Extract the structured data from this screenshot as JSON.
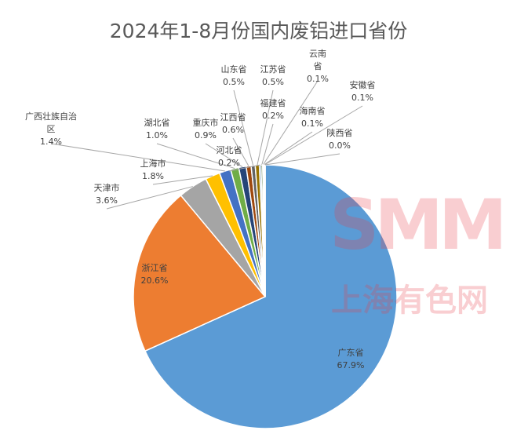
{
  "chart_data": {
    "type": "pie",
    "title": "2024年1-8月份国内废铝进口省份",
    "categories": [
      "广东省",
      "浙江省",
      "天津市",
      "上海市",
      "广西壮族自治区",
      "湖北省",
      "重庆市",
      "江西省",
      "山东省",
      "江苏省",
      "河北省",
      "福建省",
      "云南省",
      "海南省",
      "安徽省",
      "陕西省"
    ],
    "values": [
      67.9,
      20.6,
      3.6,
      1.8,
      1.4,
      1.0,
      0.9,
      0.6,
      0.5,
      0.5,
      0.2,
      0.2,
      0.1,
      0.1,
      0.1,
      0.0
    ],
    "value_labels": [
      "67.9%",
      "20.6%",
      "3.6%",
      "1.8%",
      "1.4%",
      "1.0%",
      "0.9%",
      "0.6%",
      "0.5%",
      "0.5%",
      "0.2%",
      "0.2%",
      "0.1%",
      "0.1%",
      "0.1%",
      "0.0%"
    ],
    "colors": [
      "#5b9bd5",
      "#ed7d31",
      "#a5a5a5",
      "#ffc000",
      "#4472c4",
      "#70ad47",
      "#264478",
      "#9e480e",
      "#636363",
      "#997300",
      "#255e91",
      "#43682b",
      "#698ed0",
      "#f1975a",
      "#b7b7b7",
      "#ffcd33"
    ]
  },
  "watermark": {
    "logo": "SMM",
    "name": "上海有色网"
  }
}
